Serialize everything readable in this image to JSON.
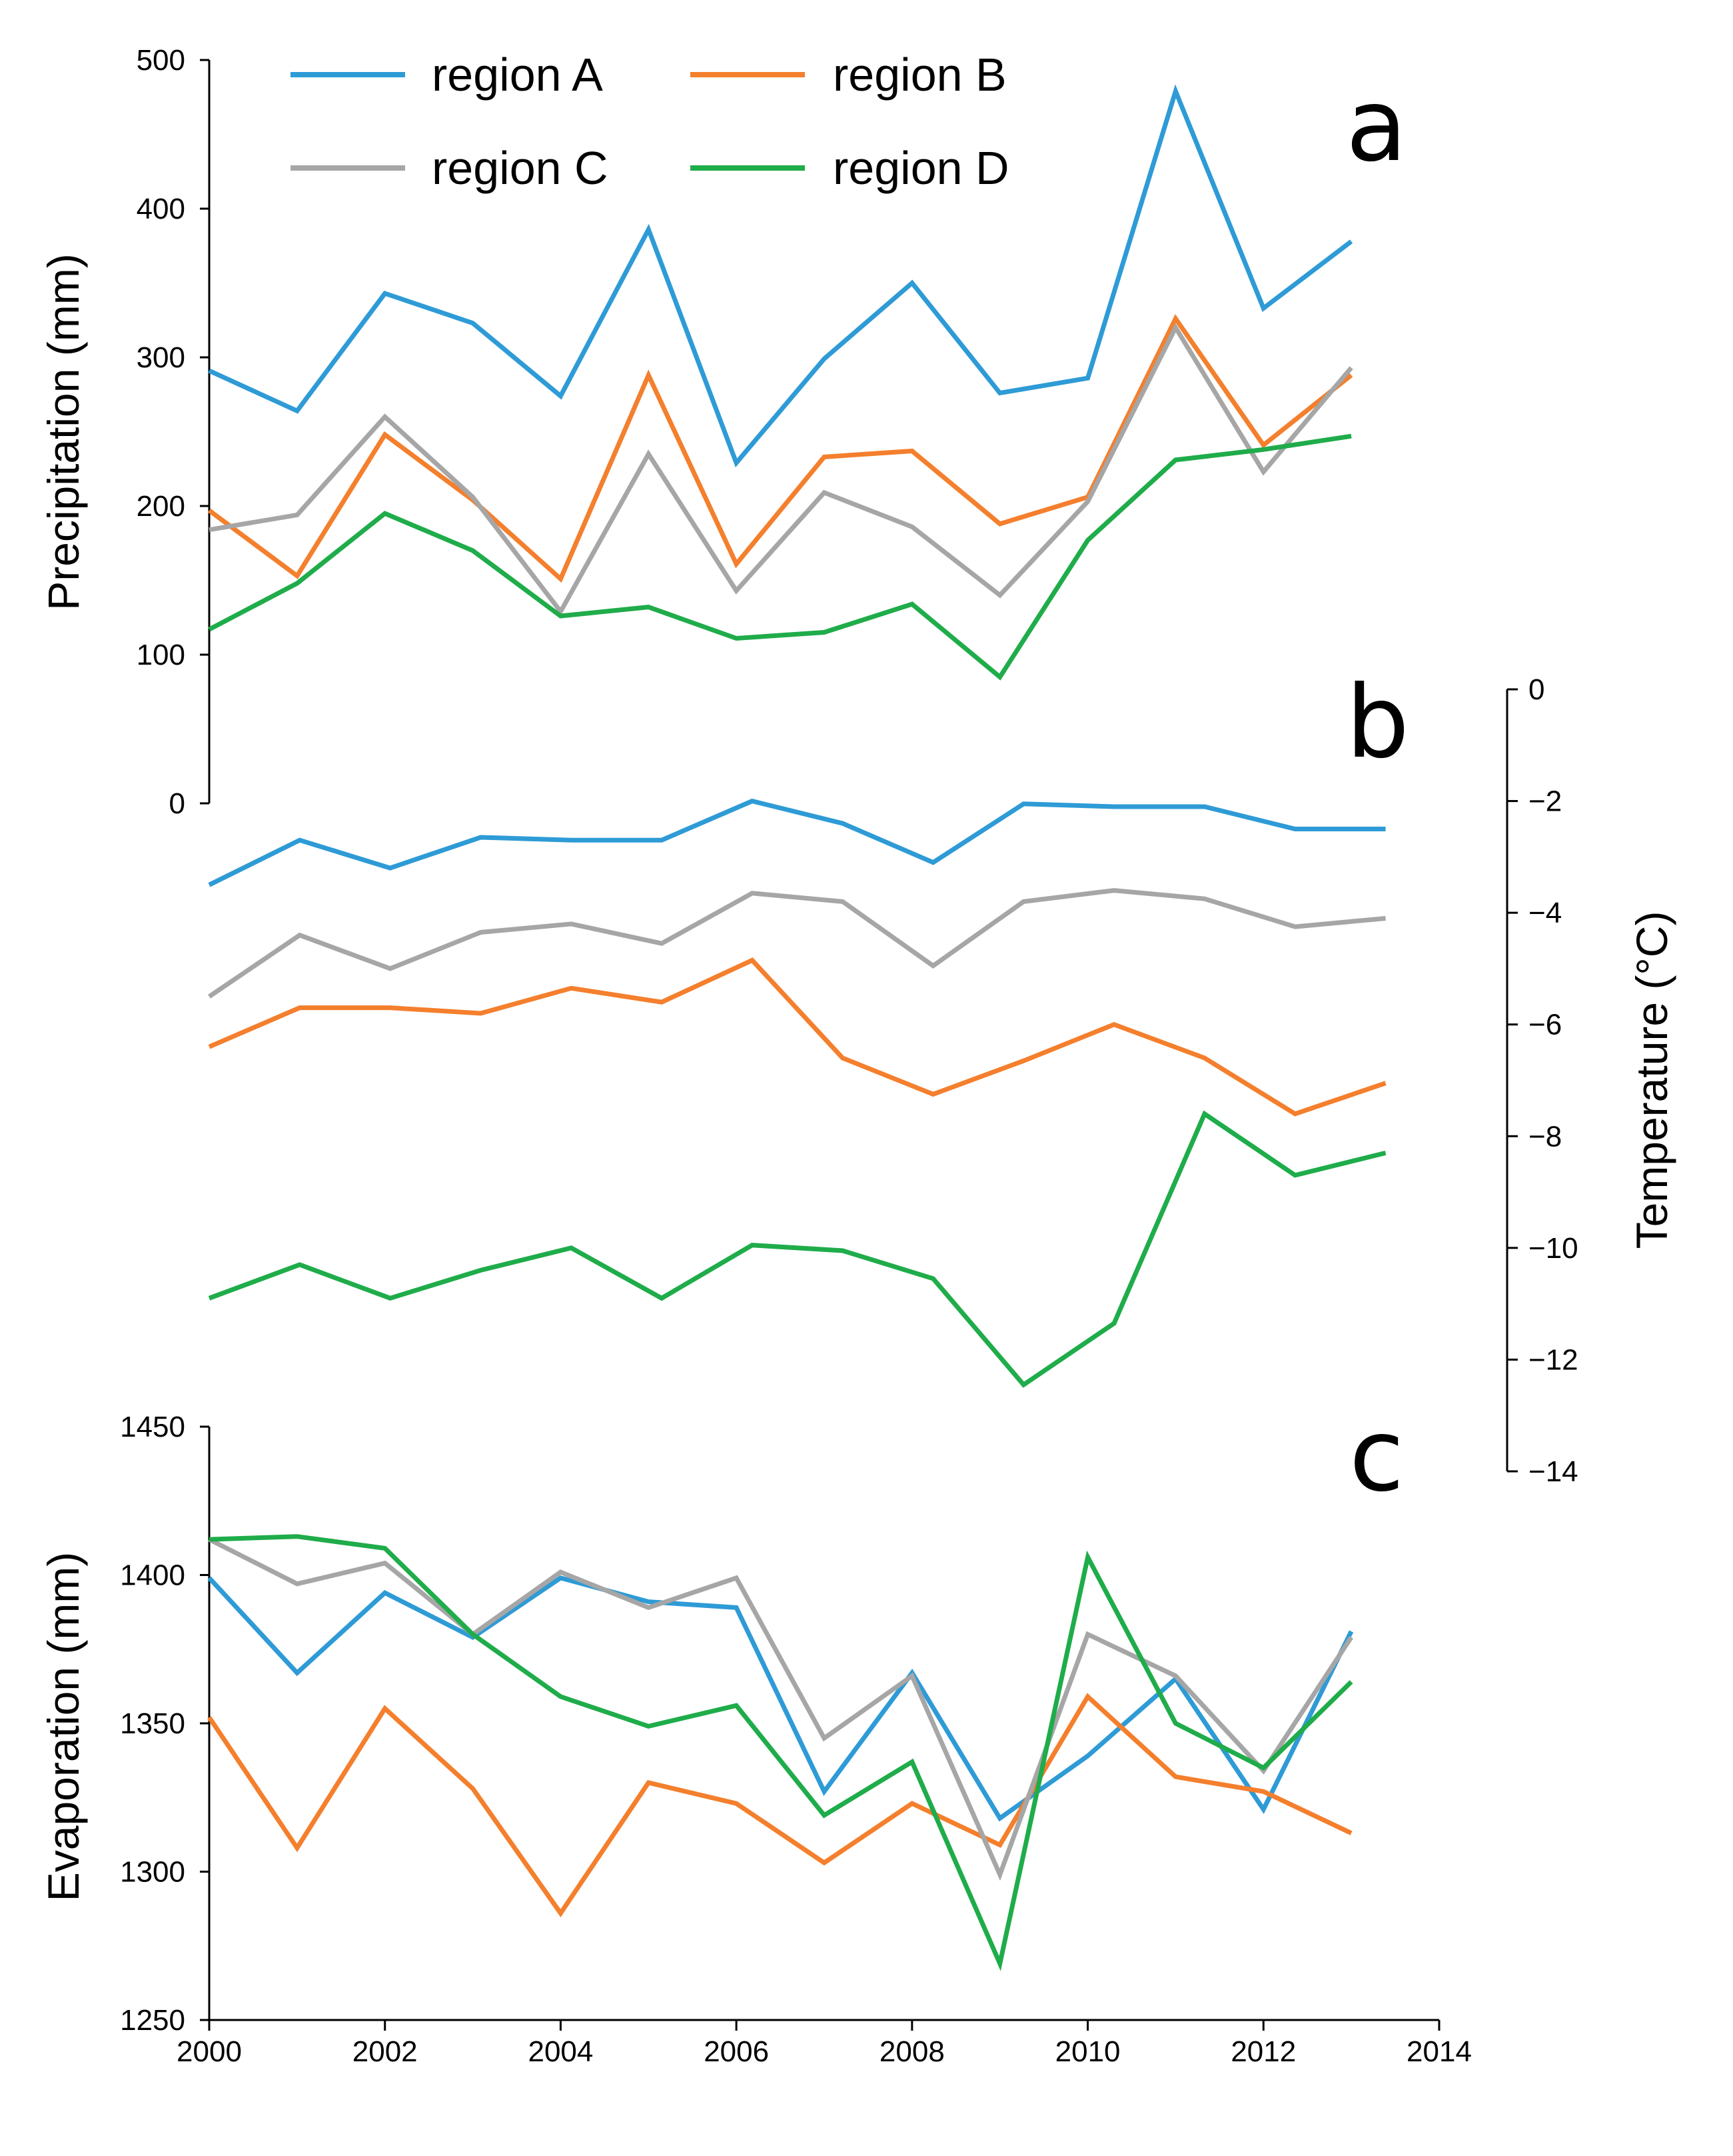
{
  "colors": {
    "region_a": "#2e9bd6",
    "region_b": "#f47f2d",
    "region_c": "#a6a6a6",
    "region_d": "#1fac4a"
  },
  "legend": [
    {
      "key": "region_a",
      "label": "region A"
    },
    {
      "key": "region_b",
      "label": "region B"
    },
    {
      "key": "region_c",
      "label": "region C"
    },
    {
      "key": "region_d",
      "label": "region D"
    }
  ],
  "chart_data": [
    {
      "panel": "a",
      "type": "line",
      "ylabel": "Precipitation (mm)",
      "ylim": [
        0,
        500
      ],
      "yticks": [
        "0",
        "100",
        "200",
        "300",
        "400",
        "500"
      ],
      "x": [
        2000,
        2001,
        2002,
        2003,
        2004,
        2005,
        2006,
        2007,
        2008,
        2009,
        2010,
        2011,
        2012,
        2013
      ],
      "series": [
        {
          "key": "region_a",
          "name": "region A",
          "values": [
            291,
            264,
            343,
            323,
            274,
            386,
            229,
            299,
            350,
            276,
            286,
            479,
            333,
            378
          ]
        },
        {
          "key": "region_b",
          "name": "region B",
          "values": [
            197,
            153,
            248,
            204,
            151,
            288,
            161,
            233,
            237,
            188,
            206,
            326,
            241,
            288
          ]
        },
        {
          "key": "region_c",
          "name": "region C",
          "values": [
            184,
            194,
            260,
            206,
            129,
            235,
            143,
            209,
            186,
            140,
            203,
            320,
            223,
            293
          ]
        },
        {
          "key": "region_d",
          "name": "region D",
          "values": [
            117,
            148,
            195,
            170,
            126,
            132,
            111,
            115,
            134,
            85,
            177,
            231,
            238,
            247
          ]
        }
      ]
    },
    {
      "panel": "b",
      "type": "line",
      "ylabel": "Temperature (°C)",
      "ylim": [
        -14,
        0
      ],
      "yticks": [
        "0",
        "−2",
        "−4",
        "−6",
        "−8",
        "−10",
        "−12",
        "−14"
      ],
      "x": [
        2000,
        2001,
        2002,
        2003,
        2004,
        2005,
        2006,
        2007,
        2008,
        2009,
        2010,
        2011,
        2012,
        2013
      ],
      "series": [
        {
          "key": "region_a",
          "name": "region A",
          "values": [
            -3.5,
            -2.7,
            -3.2,
            -2.65,
            -2.7,
            -2.7,
            -2.0,
            -2.4,
            -3.1,
            -2.05,
            -2.1,
            -2.1,
            -2.5,
            -2.5
          ]
        },
        {
          "key": "region_b",
          "name": "region B",
          "values": [
            -6.4,
            -5.7,
            -5.7,
            -5.8,
            -5.35,
            -5.6,
            -4.85,
            -6.6,
            -7.25,
            -6.65,
            -6.0,
            -6.6,
            -7.6,
            -7.05
          ]
        },
        {
          "key": "region_c",
          "name": "region C",
          "values": [
            -5.5,
            -4.4,
            -5.0,
            -4.35,
            -4.2,
            -4.55,
            -3.65,
            -3.8,
            -4.95,
            -3.8,
            -3.6,
            -3.75,
            -4.25,
            -4.1
          ]
        },
        {
          "key": "region_d",
          "name": "region D",
          "values": [
            -10.9,
            -10.3,
            -10.9,
            -10.4,
            -10.0,
            -10.9,
            -9.95,
            -10.05,
            -10.55,
            -12.45,
            -11.35,
            -7.6,
            -8.7,
            -8.3
          ]
        }
      ]
    },
    {
      "panel": "c",
      "type": "line",
      "ylabel": "Evaporation (mm)",
      "ylim": [
        1250,
        1450
      ],
      "yticks": [
        "1250",
        "1300",
        "1350",
        "1400",
        "1450"
      ],
      "xlim": [
        2000,
        2014
      ],
      "xticks": [
        "2000",
        "2002",
        "2004",
        "2006",
        "2008",
        "2010",
        "2012",
        "2014"
      ],
      "x": [
        2000,
        2001,
        2002,
        2003,
        2004,
        2005,
        2006,
        2007,
        2008,
        2009,
        2010,
        2011,
        2012,
        2013
      ],
      "series": [
        {
          "key": "region_a",
          "name": "region A",
          "values": [
            1399,
            1367,
            1394,
            1379,
            1399,
            1391,
            1389,
            1327,
            1367,
            1318,
            1339,
            1365,
            1321,
            1381
          ]
        },
        {
          "key": "region_b",
          "name": "region B",
          "values": [
            1352,
            1308,
            1355,
            1328,
            1286,
            1330,
            1323,
            1303,
            1323,
            1309,
            1359,
            1332,
            1327,
            1313
          ]
        },
        {
          "key": "region_c",
          "name": "region C",
          "values": [
            1412,
            1397,
            1404,
            1380,
            1401,
            1389,
            1399,
            1345,
            1366,
            1299,
            1380,
            1366,
            1334,
            1379
          ]
        },
        {
          "key": "region_d",
          "name": "region D",
          "values": [
            1412,
            1413,
            1409,
            1380,
            1359,
            1349,
            1356,
            1319,
            1337,
            1269,
            1406,
            1350,
            1335,
            1364
          ]
        }
      ]
    }
  ]
}
